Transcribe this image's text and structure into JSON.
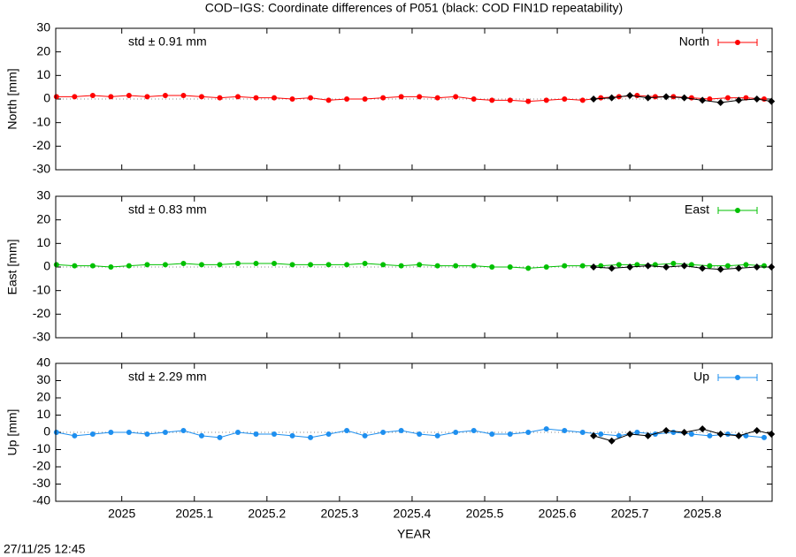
{
  "title": "COD−IGS: Coordinate differences of P051 (black: COD FIN1D repeatability)",
  "timestamp": "27/11/25 12:45",
  "chart_data": [
    {
      "type": "scatter",
      "ylabel": "North [mm]",
      "annotation": "std ± 0.91 mm",
      "legend": "upper right",
      "xlim": [
        2024.909,
        2025.896
      ],
      "xticks": [
        2025,
        2025.1,
        2025.2,
        2025.3,
        2025.4,
        2025.5,
        2025.6,
        2025.7,
        2025.8
      ],
      "ylim": [
        -30,
        30
      ],
      "yticks": [
        -30,
        -20,
        -10,
        0,
        10,
        20,
        30
      ],
      "series": [
        {
          "name": "North",
          "color": "#ff0000",
          "x": [
            2024.91,
            2024.935,
            2024.96,
            2024.985,
            2025.01,
            2025.035,
            2025.06,
            2025.085,
            2025.11,
            2025.135,
            2025.16,
            2025.185,
            2025.21,
            2025.235,
            2025.26,
            2025.285,
            2025.31,
            2025.335,
            2025.36,
            2025.385,
            2025.41,
            2025.435,
            2025.46,
            2025.485,
            2025.51,
            2025.535,
            2025.56,
            2025.585,
            2025.61,
            2025.635,
            2025.66,
            2025.685,
            2025.71,
            2025.735,
            2025.76,
            2025.785,
            2025.81,
            2025.835,
            2025.86,
            2025.885
          ],
          "values": [
            1,
            1,
            1.5,
            1,
            1.5,
            1,
            1.5,
            1.5,
            1,
            0.5,
            1,
            0.5,
            0.5,
            0,
            0.5,
            -0.5,
            0,
            0,
            0.5,
            1,
            1,
            0.5,
            1,
            0,
            -0.5,
            -0.5,
            -1,
            -0.5,
            0,
            -0.5,
            0.5,
            1,
            1.5,
            1,
            1,
            0.5,
            0,
            0.5,
            0.5,
            0
          ]
        },
        {
          "color": "#000000",
          "x": [
            2025.65,
            2025.675,
            2025.7,
            2025.725,
            2025.75,
            2025.775,
            2025.8,
            2025.825,
            2025.85,
            2025.875,
            2025.895
          ],
          "values": [
            0,
            0.5,
            1.5,
            0.5,
            1,
            0.5,
            -0.5,
            -1.5,
            -0.5,
            0,
            -1
          ]
        }
      ]
    },
    {
      "type": "scatter",
      "ylabel": "East [mm]",
      "annotation": "std ± 0.83 mm",
      "legend": "upper right",
      "xlim": [
        2024.909,
        2025.896
      ],
      "xticks": [
        2025,
        2025.1,
        2025.2,
        2025.3,
        2025.4,
        2025.5,
        2025.6,
        2025.7,
        2025.8
      ],
      "ylim": [
        -30,
        30
      ],
      "yticks": [
        -30,
        -20,
        -10,
        0,
        10,
        20,
        30
      ],
      "series": [
        {
          "name": "East",
          "color": "#00c000",
          "x": [
            2024.91,
            2024.935,
            2024.96,
            2024.985,
            2025.01,
            2025.035,
            2025.06,
            2025.085,
            2025.11,
            2025.135,
            2025.16,
            2025.185,
            2025.21,
            2025.235,
            2025.26,
            2025.285,
            2025.31,
            2025.335,
            2025.36,
            2025.385,
            2025.41,
            2025.435,
            2025.46,
            2025.485,
            2025.51,
            2025.535,
            2025.56,
            2025.585,
            2025.61,
            2025.635,
            2025.66,
            2025.685,
            2025.71,
            2025.735,
            2025.76,
            2025.785,
            2025.81,
            2025.835,
            2025.86,
            2025.885
          ],
          "values": [
            1,
            0.5,
            0.5,
            0,
            0.5,
            1,
            1,
            1.5,
            1,
            1,
            1.5,
            1.5,
            1.5,
            1,
            1,
            1,
            1,
            1.5,
            1,
            0.5,
            1,
            0.5,
            0.5,
            0.5,
            0,
            0,
            -0.5,
            0,
            0.5,
            0.5,
            0.5,
            1,
            1,
            1,
            1.5,
            1,
            0.5,
            0.5,
            1,
            0.5
          ]
        },
        {
          "color": "#000000",
          "x": [
            2025.65,
            2025.675,
            2025.7,
            2025.725,
            2025.75,
            2025.775,
            2025.8,
            2025.825,
            2025.85,
            2025.875,
            2025.895
          ],
          "values": [
            0,
            -0.5,
            0,
            0.5,
            0,
            0.5,
            -0.5,
            -1,
            -0.5,
            0,
            0
          ]
        }
      ]
    },
    {
      "type": "scatter",
      "ylabel": "Up [mm]",
      "xlabel": "YEAR",
      "annotation": "std ± 2.29 mm",
      "legend": "upper right",
      "xlim": [
        2024.909,
        2025.896
      ],
      "xticks": [
        2025,
        2025.1,
        2025.2,
        2025.3,
        2025.4,
        2025.5,
        2025.6,
        2025.7,
        2025.8
      ],
      "ylim": [
        -40,
        40
      ],
      "yticks": [
        -40,
        -30,
        -20,
        -10,
        0,
        10,
        20,
        30,
        40
      ],
      "series": [
        {
          "name": "Up",
          "color": "#1e8fef",
          "x": [
            2024.91,
            2024.935,
            2024.96,
            2024.985,
            2025.01,
            2025.035,
            2025.06,
            2025.085,
            2025.11,
            2025.135,
            2025.16,
            2025.185,
            2025.21,
            2025.235,
            2025.26,
            2025.285,
            2025.31,
            2025.335,
            2025.36,
            2025.385,
            2025.41,
            2025.435,
            2025.46,
            2025.485,
            2025.51,
            2025.535,
            2025.56,
            2025.585,
            2025.61,
            2025.635,
            2025.66,
            2025.685,
            2025.71,
            2025.735,
            2025.76,
            2025.785,
            2025.81,
            2025.835,
            2025.86,
            2025.885
          ],
          "values": [
            0,
            -2,
            -1,
            0,
            0,
            -1,
            0,
            1,
            -2,
            -3,
            0,
            -1,
            -1,
            -2,
            -3,
            -1,
            1,
            -2,
            0,
            1,
            -1,
            -2,
            0,
            1,
            -1,
            -1,
            0,
            2,
            1,
            0,
            -1,
            -2,
            0,
            -1,
            0,
            -1,
            -2,
            -1,
            -2,
            -3
          ]
        },
        {
          "color": "#000000",
          "x": [
            2025.65,
            2025.675,
            2025.7,
            2025.725,
            2025.75,
            2025.775,
            2025.8,
            2025.825,
            2025.85,
            2025.875,
            2025.895
          ],
          "values": [
            -2,
            -5,
            -1,
            -2,
            1,
            0,
            2,
            -1,
            -2,
            1,
            -1
          ]
        }
      ]
    }
  ]
}
